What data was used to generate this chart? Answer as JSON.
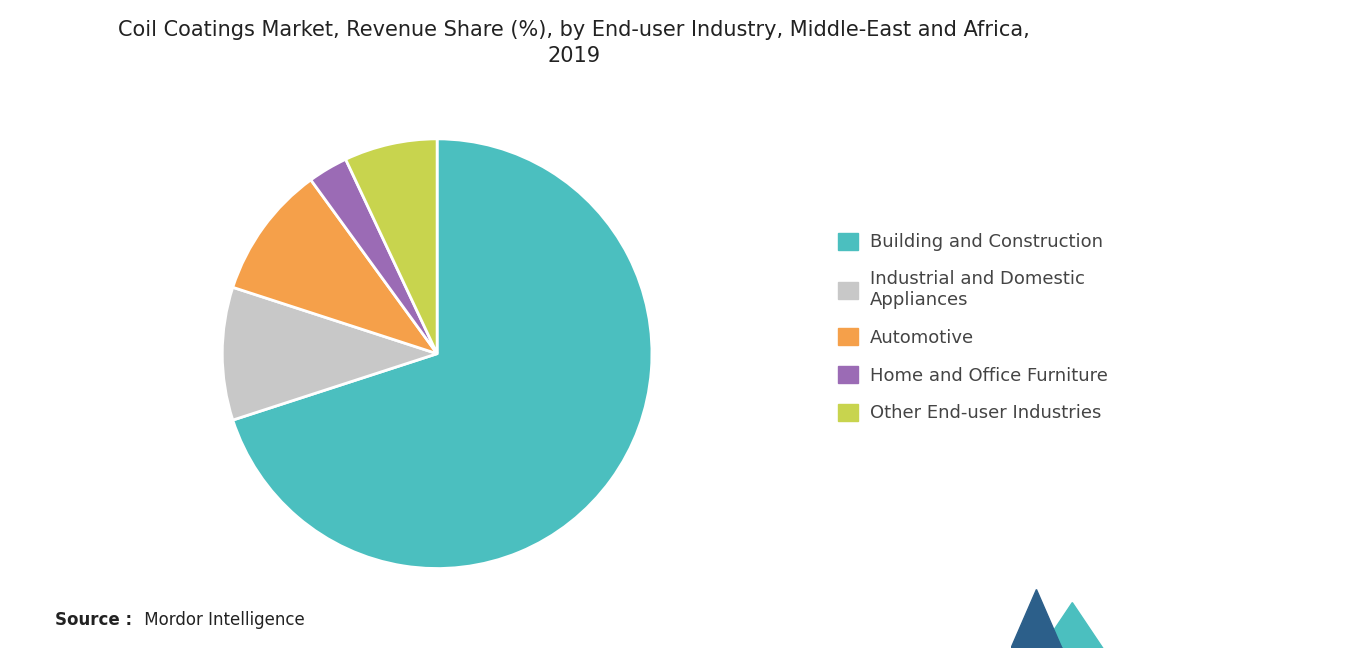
{
  "title": "Coil Coatings Market, Revenue Share (%), by End-user Industry, Middle-East and Africa,\n2019",
  "legend_labels": [
    "Building and Construction",
    "Industrial and Domestic\nAppliances",
    "Automotive",
    "Home and Office Furniture",
    "Other End-user Industries"
  ],
  "values": [
    70,
    10,
    10,
    3,
    7
  ],
  "colors": [
    "#4bbfbf",
    "#c8c8c8",
    "#f5a04a",
    "#9b6bb5",
    "#c8d44e"
  ],
  "startangle": 90,
  "background_color": "#ffffff",
  "title_fontsize": 15,
  "legend_fontsize": 13,
  "source_bold": "Source :",
  "source_regular": " Mordor Intelligence"
}
